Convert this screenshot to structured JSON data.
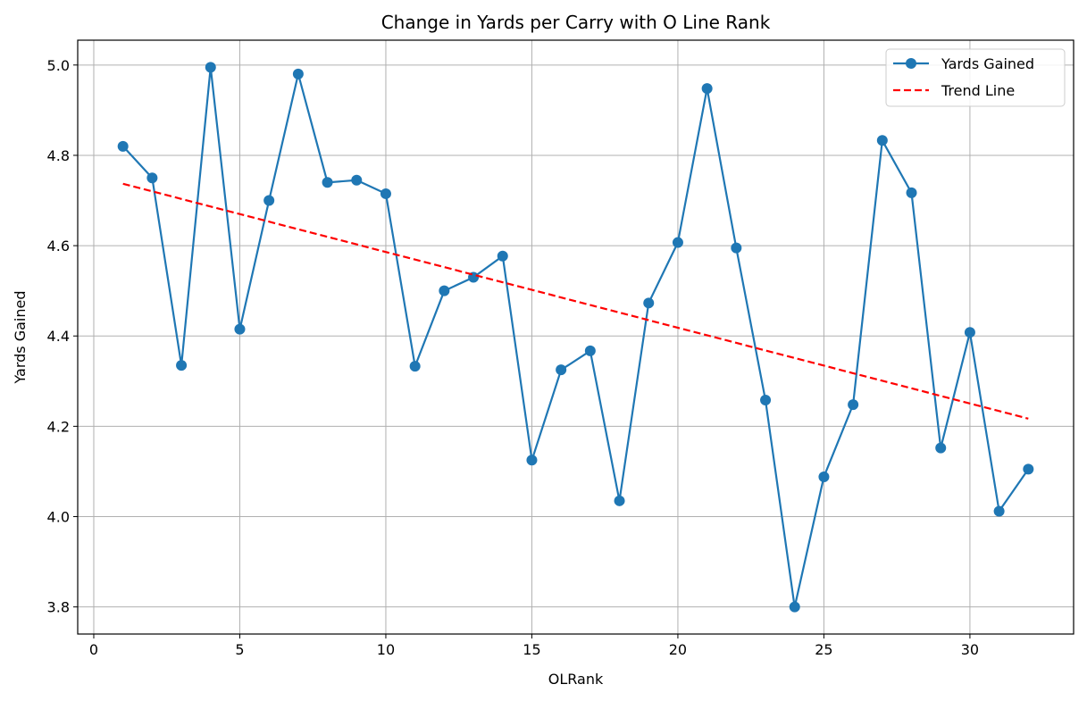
{
  "chart_data": {
    "type": "line",
    "title": "Change in Yards per Carry with O Line Rank",
    "xlabel": "OLRank",
    "ylabel": "Yards Gained",
    "xlim": [
      -0.55,
      33.55
    ],
    "ylim": [
      3.74,
      5.055
    ],
    "xticks": [
      0,
      5,
      10,
      15,
      20,
      25,
      30
    ],
    "yticks": [
      3.8,
      4.0,
      4.2,
      4.4,
      4.6,
      4.8,
      5.0
    ],
    "xtick_labels": [
      "0",
      "5",
      "10",
      "15",
      "20",
      "25",
      "30"
    ],
    "ytick_labels": [
      "3.8",
      "4.0",
      "4.2",
      "4.4",
      "4.6",
      "4.8",
      "5.0"
    ],
    "grid": true,
    "legend_position": "top-right",
    "series": [
      {
        "name": "Yards Gained",
        "style": "solid-markers",
        "color": "#1f77b4",
        "x": [
          1,
          2,
          3,
          4,
          5,
          6,
          7,
          8,
          9,
          10,
          11,
          12,
          13,
          14,
          15,
          16,
          17,
          18,
          19,
          20,
          21,
          22,
          23,
          24,
          25,
          26,
          27,
          28,
          29,
          30,
          31,
          32
        ],
        "values": [
          4.82,
          4.75,
          4.335,
          4.995,
          4.415,
          4.7,
          4.98,
          4.74,
          4.745,
          4.715,
          4.333,
          4.5,
          4.53,
          4.577,
          4.125,
          4.325,
          4.367,
          4.035,
          4.473,
          4.607,
          4.948,
          4.595,
          4.258,
          3.8,
          4.088,
          4.248,
          4.833,
          4.717,
          4.152,
          4.408,
          4.012,
          4.105
        ]
      },
      {
        "name": "Trend Line",
        "style": "dashed",
        "color": "#ff0000",
        "x": [
          1,
          32
        ],
        "values": [
          4.737,
          4.217
        ]
      }
    ]
  }
}
